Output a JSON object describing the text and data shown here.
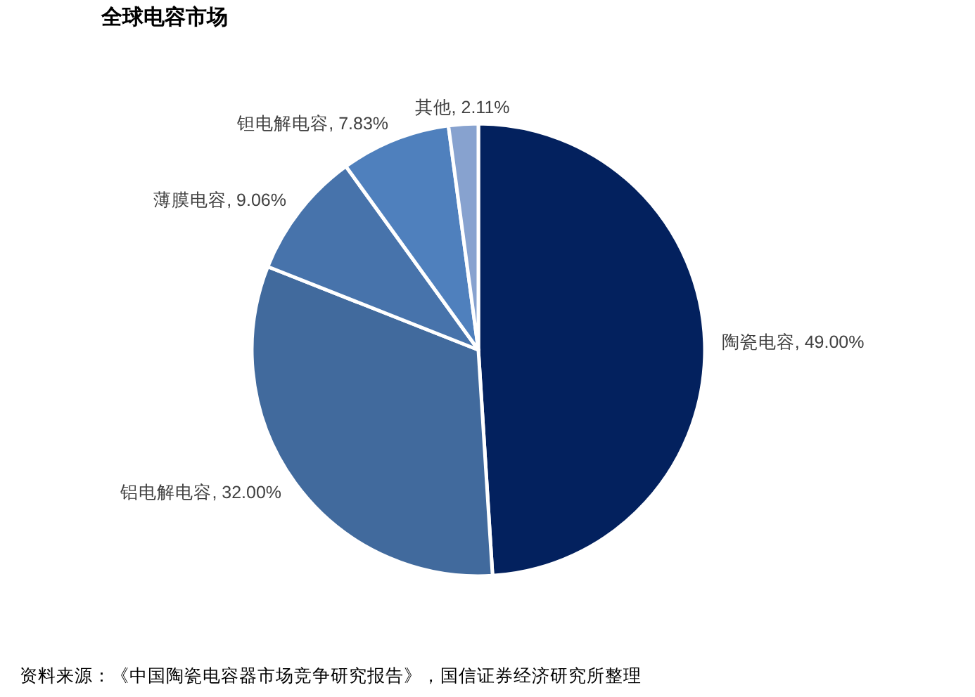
{
  "chart_data": {
    "type": "pie",
    "title": "全球电容市场",
    "categories": [
      "陶瓷电容",
      "铝电解电容",
      "薄膜电容",
      "钽电解电容",
      "其他"
    ],
    "values": [
      49.0,
      32.0,
      9.06,
      7.83,
      2.11
    ],
    "value_labels": [
      "49.00%",
      "32.00%",
      "9.06%",
      "7.83%",
      "2.11%"
    ],
    "colors": [
      "#03215e",
      "#416a9d",
      "#4773ab",
      "#4f80bd",
      "#87a2cf"
    ],
    "annotations": [
      "资料来源：《中国陶瓷电容器市场竞争研究报告》，国信证券经济研究所整理"
    ]
  }
}
